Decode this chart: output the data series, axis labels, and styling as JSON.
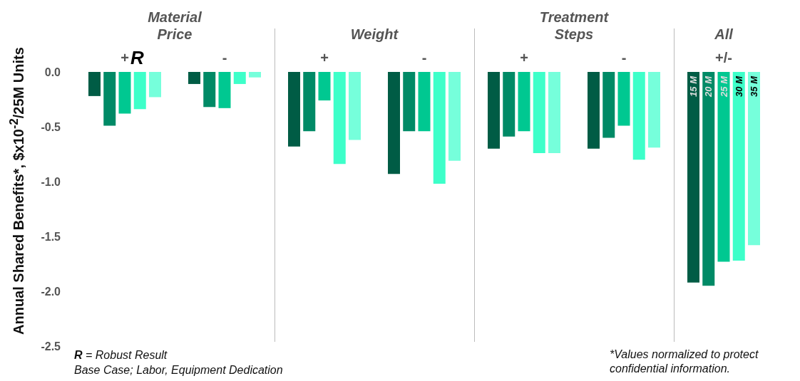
{
  "chart_data": {
    "type": "bar",
    "ylabel": "Annual Shared Benefits*, $x10$^{-2}$/25M Units",
    "categories": [
      "+",
      "-",
      "+",
      "-",
      "+",
      "-",
      "+/-"
    ],
    "series": [
      {
        "name": "15 M",
        "color": "#005c45",
        "values": [
          -0.22,
          -0.11,
          -0.68,
          -0.93,
          -0.7,
          -0.7,
          -1.92
        ]
      },
      {
        "name": "20 M",
        "color": "#008a66",
        "values": [
          -0.49,
          -0.32,
          -0.54,
          -0.54,
          -0.59,
          -0.6,
          -1.95
        ]
      },
      {
        "name": "25 M",
        "color": "#00c891",
        "values": [
          -0.38,
          -0.33,
          -0.26,
          -0.54,
          -0.54,
          -0.49,
          -1.73
        ]
      },
      {
        "name": "30 M",
        "color": "#3dffc9",
        "values": [
          -0.34,
          -0.11,
          -0.84,
          -1.02,
          -0.74,
          -0.8,
          -1.72
        ]
      },
      {
        "name": "35 M",
        "color": "#76ffdb",
        "values": [
          -0.23,
          -0.05,
          -0.62,
          -0.81,
          -0.74,
          -0.69,
          -1.58
        ]
      }
    ],
    "ylim": [
      -2.5,
      0
    ],
    "yticks": [
      {
        "value": 0,
        "label": "0.0"
      },
      {
        "value": -0.5,
        "label": "-0.5"
      },
      {
        "value": -1,
        "label": "-1.0"
      },
      {
        "value": -1.5,
        "label": "-1.5"
      },
      {
        "value": -2,
        "label": "-2.0"
      },
      {
        "value": -2.5,
        "label": "-2.5"
      }
    ],
    "grid": false,
    "legend": false,
    "annotations": [
      "Material Price",
      "Weight",
      "Treatment Steps",
      "All",
      "R",
      "R = Robust Result",
      "Base Case; Labor, Equipment Dedication",
      "*Values normalized to protect confidential information."
    ]
  }
}
